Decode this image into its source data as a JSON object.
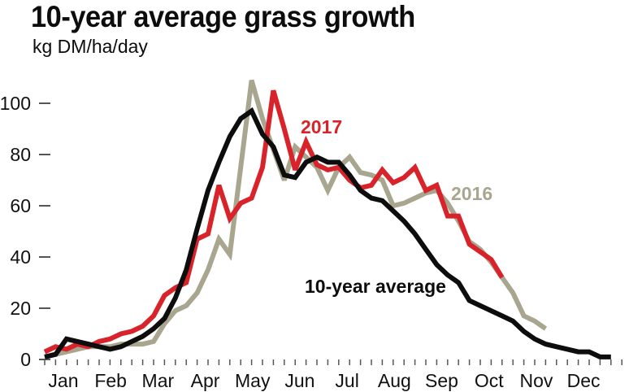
{
  "chart_data": {
    "type": "line",
    "title": "10-year average grass growth",
    "subtitle": "kg DM/ha/day",
    "xlabel": "",
    "ylabel": "",
    "ylim": [
      0,
      110
    ],
    "yticks": [
      0,
      20,
      40,
      60,
      80,
      100
    ],
    "x_unit": "week of year",
    "month_labels": [
      "Jan",
      "Feb",
      "Mar",
      "Apr",
      "May",
      "Jun",
      "Jul",
      "Aug",
      "Sep",
      "Oct",
      "Nov",
      "Dec"
    ],
    "grid": false,
    "legend": "inline labels",
    "series": [
      {
        "name": "10-year average",
        "color": "#0d0d0d",
        "values": [
          1,
          2,
          8,
          7,
          6,
          5,
          4,
          5,
          7,
          9,
          12,
          16,
          24,
          35,
          51,
          66,
          77,
          87,
          94,
          97,
          88,
          83,
          72,
          71,
          77,
          79,
          77,
          77,
          72,
          66,
          63,
          62,
          58,
          54,
          49,
          43,
          37,
          33,
          30,
          23,
          21,
          19,
          17,
          15,
          11,
          8,
          6,
          5,
          4,
          3,
          3,
          1,
          1
        ]
      },
      {
        "name": "2016",
        "color": "#a9a68f",
        "values": [
          1,
          2,
          3,
          4,
          5,
          5,
          5,
          6,
          6,
          6,
          7,
          14,
          19,
          21,
          26,
          35,
          47,
          41,
          75,
          109,
          94,
          82,
          70,
          83,
          79,
          75,
          66,
          75,
          79,
          73,
          72,
          70,
          60,
          61,
          63,
          65,
          66,
          61,
          54,
          46,
          43,
          38,
          32,
          26,
          17,
          15,
          12
        ]
      },
      {
        "name": "2017",
        "color": "#d9232b",
        "values": [
          3,
          5,
          4,
          6,
          5,
          7,
          8,
          10,
          11,
          13,
          17,
          25,
          28,
          30,
          47,
          49,
          68,
          55,
          61,
          63,
          75,
          105,
          90,
          74,
          85,
          76,
          74,
          75,
          70,
          67,
          68,
          74,
          69,
          71,
          75,
          66,
          68,
          56,
          56,
          45,
          42,
          39,
          32
        ]
      }
    ]
  }
}
